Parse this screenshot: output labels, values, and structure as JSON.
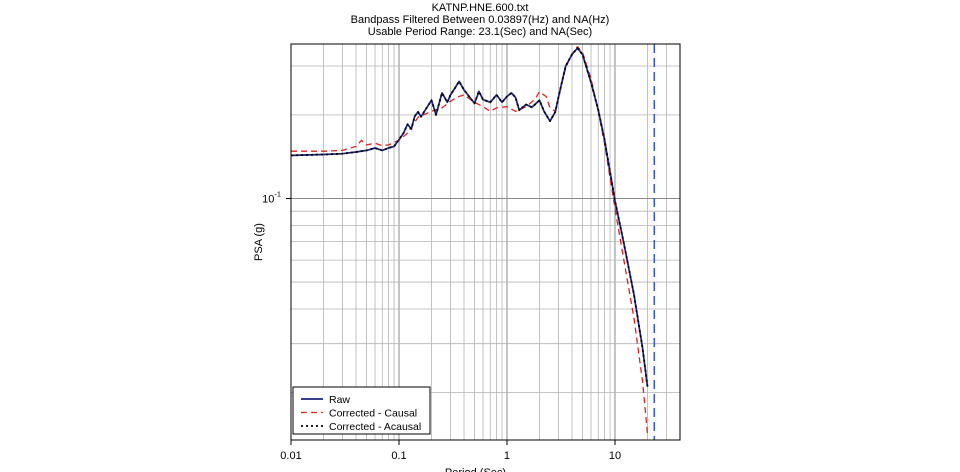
{
  "chart_data": {
    "type": "line",
    "title": "KATNP.HNE.600.txt",
    "subtitle_lines": [
      "Bandpass Filtered Between 0.03897(Hz) and NA(Hz)",
      "Usable Period Range: 23.1(Sec) and NA(Sec)"
    ],
    "xlabel": "Period (Sec)",
    "ylabel": "PSA (g)",
    "x_scale": "log",
    "y_scale": "log",
    "xlim": [
      0.01,
      40
    ],
    "ylim": [
      0.0135,
      0.36
    ],
    "x_ticks": [
      {
        "value": 0.01,
        "label": "0.01"
      },
      {
        "value": 0.1,
        "label": "0.1"
      },
      {
        "value": 1,
        "label": "1"
      },
      {
        "value": 10,
        "label": "10"
      }
    ],
    "y_ticks": [
      {
        "value": 0.1,
        "label_base": "10",
        "label_exp": "-1"
      }
    ],
    "grid": true,
    "vline": {
      "x": 23.1,
      "style": "dashed",
      "color": "#2a4fd6"
    },
    "legend_position": "bottom-left",
    "series": [
      {
        "name": "Raw",
        "color": "#1a237e",
        "style": "solid",
        "points": [
          [
            0.01,
            0.143
          ],
          [
            0.02,
            0.144
          ],
          [
            0.03,
            0.145
          ],
          [
            0.04,
            0.147
          ],
          [
            0.05,
            0.149
          ],
          [
            0.06,
            0.152
          ],
          [
            0.07,
            0.149
          ],
          [
            0.08,
            0.152
          ],
          [
            0.09,
            0.154
          ],
          [
            0.1,
            0.163
          ],
          [
            0.11,
            0.172
          ],
          [
            0.12,
            0.185
          ],
          [
            0.13,
            0.178
          ],
          [
            0.14,
            0.198
          ],
          [
            0.15,
            0.205
          ],
          [
            0.16,
            0.197
          ],
          [
            0.18,
            0.212
          ],
          [
            0.2,
            0.226
          ],
          [
            0.22,
            0.2
          ],
          [
            0.25,
            0.24
          ],
          [
            0.28,
            0.222
          ],
          [
            0.3,
            0.236
          ],
          [
            0.33,
            0.25
          ],
          [
            0.36,
            0.264
          ],
          [
            0.4,
            0.246
          ],
          [
            0.45,
            0.232
          ],
          [
            0.5,
            0.22
          ],
          [
            0.55,
            0.243
          ],
          [
            0.6,
            0.227
          ],
          [
            0.7,
            0.222
          ],
          [
            0.8,
            0.236
          ],
          [
            0.9,
            0.222
          ],
          [
            1.0,
            0.233
          ],
          [
            1.1,
            0.24
          ],
          [
            1.2,
            0.231
          ],
          [
            1.3,
            0.208
          ],
          [
            1.5,
            0.218
          ],
          [
            1.7,
            0.213
          ],
          [
            2.0,
            0.226
          ],
          [
            2.2,
            0.206
          ],
          [
            2.5,
            0.19
          ],
          [
            2.8,
            0.205
          ],
          [
            3.0,
            0.232
          ],
          [
            3.5,
            0.3
          ],
          [
            4.0,
            0.33
          ],
          [
            4.5,
            0.348
          ],
          [
            5.0,
            0.33
          ],
          [
            6.0,
            0.262
          ],
          [
            7.0,
            0.208
          ],
          [
            8.0,
            0.163
          ],
          [
            10.0,
            0.098
          ],
          [
            12.0,
            0.07
          ],
          [
            15.0,
            0.045
          ],
          [
            18.0,
            0.029
          ],
          [
            20.0,
            0.021
          ]
        ]
      },
      {
        "name": "Corrected - Causal",
        "color": "#e02020",
        "style": "dashed",
        "points": [
          [
            0.01,
            0.148
          ],
          [
            0.02,
            0.148
          ],
          [
            0.03,
            0.149
          ],
          [
            0.04,
            0.154
          ],
          [
            0.045,
            0.162
          ],
          [
            0.05,
            0.156
          ],
          [
            0.06,
            0.158
          ],
          [
            0.07,
            0.155
          ],
          [
            0.08,
            0.156
          ],
          [
            0.1,
            0.162
          ],
          [
            0.12,
            0.172
          ],
          [
            0.15,
            0.196
          ],
          [
            0.2,
            0.206
          ],
          [
            0.25,
            0.212
          ],
          [
            0.3,
            0.224
          ],
          [
            0.35,
            0.232
          ],
          [
            0.4,
            0.236
          ],
          [
            0.5,
            0.222
          ],
          [
            0.6,
            0.214
          ],
          [
            0.7,
            0.206
          ],
          [
            0.8,
            0.212
          ],
          [
            1.0,
            0.214
          ],
          [
            1.2,
            0.206
          ],
          [
            1.5,
            0.214
          ],
          [
            1.8,
            0.227
          ],
          [
            2.0,
            0.242
          ],
          [
            2.3,
            0.233
          ],
          [
            2.5,
            0.212
          ],
          [
            2.8,
            0.206
          ],
          [
            3.0,
            0.232
          ],
          [
            3.5,
            0.296
          ],
          [
            4.0,
            0.332
          ],
          [
            4.5,
            0.352
          ],
          [
            5.0,
            0.336
          ],
          [
            6.0,
            0.27
          ],
          [
            7.0,
            0.206
          ],
          [
            8.0,
            0.158
          ],
          [
            10.0,
            0.092
          ],
          [
            12.0,
            0.061
          ],
          [
            15.0,
            0.037
          ],
          [
            18.0,
            0.022
          ],
          [
            20.0,
            0.0142
          ]
        ]
      },
      {
        "name": "Corrected - Acausal",
        "color": "#000000",
        "style": "dotted",
        "points": [
          [
            0.01,
            0.143
          ],
          [
            0.02,
            0.144
          ],
          [
            0.03,
            0.145
          ],
          [
            0.04,
            0.147
          ],
          [
            0.05,
            0.149
          ],
          [
            0.06,
            0.152
          ],
          [
            0.07,
            0.149
          ],
          [
            0.08,
            0.152
          ],
          [
            0.09,
            0.154
          ],
          [
            0.1,
            0.163
          ],
          [
            0.11,
            0.172
          ],
          [
            0.12,
            0.185
          ],
          [
            0.13,
            0.178
          ],
          [
            0.14,
            0.198
          ],
          [
            0.15,
            0.205
          ],
          [
            0.16,
            0.197
          ],
          [
            0.18,
            0.212
          ],
          [
            0.2,
            0.226
          ],
          [
            0.22,
            0.2
          ],
          [
            0.25,
            0.24
          ],
          [
            0.28,
            0.222
          ],
          [
            0.3,
            0.236
          ],
          [
            0.33,
            0.25
          ],
          [
            0.36,
            0.264
          ],
          [
            0.4,
            0.246
          ],
          [
            0.45,
            0.232
          ],
          [
            0.5,
            0.22
          ],
          [
            0.55,
            0.243
          ],
          [
            0.6,
            0.227
          ],
          [
            0.7,
            0.222
          ],
          [
            0.8,
            0.236
          ],
          [
            0.9,
            0.222
          ],
          [
            1.0,
            0.233
          ],
          [
            1.1,
            0.24
          ],
          [
            1.2,
            0.231
          ],
          [
            1.3,
            0.208
          ],
          [
            1.5,
            0.218
          ],
          [
            1.7,
            0.213
          ],
          [
            2.0,
            0.226
          ],
          [
            2.2,
            0.206
          ],
          [
            2.5,
            0.19
          ],
          [
            2.8,
            0.205
          ],
          [
            3.0,
            0.232
          ],
          [
            3.5,
            0.3
          ],
          [
            4.0,
            0.33
          ],
          [
            4.5,
            0.348
          ],
          [
            5.0,
            0.33
          ],
          [
            6.0,
            0.262
          ],
          [
            7.0,
            0.208
          ],
          [
            8.0,
            0.163
          ],
          [
            10.0,
            0.098
          ],
          [
            12.0,
            0.07
          ],
          [
            15.0,
            0.045
          ],
          [
            18.0,
            0.029
          ],
          [
            20.0,
            0.021
          ]
        ]
      }
    ]
  }
}
